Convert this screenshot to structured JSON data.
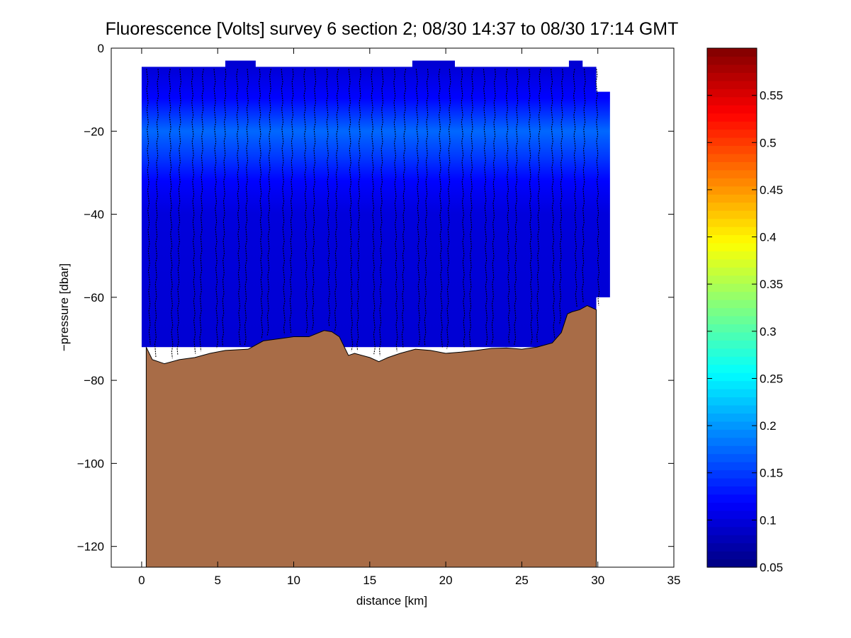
{
  "chart_data": {
    "type": "heatmap",
    "title": "Fluorescence [Volts] survey 6 section 2; 08/30 14:37 to 08/30 17:14 GMT",
    "xlabel": "distance [km]",
    "ylabel": "−pressure [dbar]",
    "xlim": [
      -2,
      35
    ],
    "ylim": [
      -125,
      0
    ],
    "xticks": [
      0,
      5,
      10,
      15,
      20,
      25,
      30,
      35
    ],
    "xtick_labels": [
      "0",
      "5",
      "10",
      "15",
      "20",
      "25",
      "30",
      "35"
    ],
    "yticks": [
      0,
      -20,
      -40,
      -60,
      -80,
      -100,
      -120
    ],
    "ytick_labels": [
      "0",
      "−20",
      "−40",
      "−60",
      "−80",
      "−100",
      "−120"
    ],
    "grid": false,
    "colorbar": {
      "colormap": "jet",
      "range": [
        0.05,
        0.6
      ],
      "ticks": [
        0.05,
        0.1,
        0.15,
        0.2,
        0.25,
        0.3,
        0.35,
        0.4,
        0.45,
        0.5,
        0.55
      ],
      "tick_labels": [
        "0.05",
        "0.1",
        "0.15",
        "0.2",
        "0.25",
        "0.3",
        "0.35",
        "0.4",
        "0.45",
        "0.5",
        "0.55"
      ]
    },
    "field_profile": [
      {
        "depth": -4,
        "value": 0.095
      },
      {
        "depth": -12,
        "value": 0.12
      },
      {
        "depth": -20,
        "value": 0.175
      },
      {
        "depth": -26,
        "value": 0.15
      },
      {
        "depth": -32,
        "value": 0.12
      },
      {
        "depth": -40,
        "value": 0.1
      },
      {
        "depth": -55,
        "value": 0.097
      },
      {
        "depth": -75,
        "value": 0.095
      }
    ],
    "coverage": {
      "x_start": 0,
      "x_end": 29.9,
      "top": -4.5,
      "bottom": -72,
      "extra_patches": [
        {
          "x0": 5.5,
          "x1": 7.5,
          "top": -3
        },
        {
          "x0": 17.8,
          "x1": 20.6,
          "top": -3
        },
        {
          "x0": 28.1,
          "x1": 29.0,
          "top": -3
        },
        {
          "x0": 29.8,
          "x1": 30.8,
          "top": -10.5,
          "bottom": -60
        }
      ]
    },
    "bathymetry": {
      "color": "#A86C47",
      "x": [
        0.3,
        0.7,
        1.5,
        2.5,
        3.5,
        4.5,
        5.5,
        7.0,
        8.0,
        9.0,
        10.0,
        11.0,
        12.0,
        12.5,
        13.0,
        13.6,
        14.0,
        15.0,
        15.6,
        16.2,
        17.0,
        18.0,
        19.0,
        20.0,
        21.0,
        22.0,
        23.0,
        24.0,
        25.0,
        26.0,
        27.0,
        27.6,
        28.0,
        28.3,
        28.8,
        29.3,
        29.9
      ],
      "y": [
        -72,
        -75,
        -76,
        -75,
        -74.5,
        -73.5,
        -72.8,
        -72.5,
        -70.5,
        -70,
        -69.5,
        -69.5,
        -68,
        -68.3,
        -69.5,
        -74,
        -73.5,
        -74.5,
        -75.5,
        -74.5,
        -73.5,
        -72.5,
        -72.8,
        -73.5,
        -73.2,
        -72.8,
        -72.3,
        -72.2,
        -72.5,
        -72,
        -71,
        -68.5,
        -64,
        -63.5,
        -63,
        -62,
        -63
      ]
    },
    "profiles": {
      "x_start": 0.35,
      "x_end": 29.9,
      "count": 41,
      "top": -5
    }
  }
}
